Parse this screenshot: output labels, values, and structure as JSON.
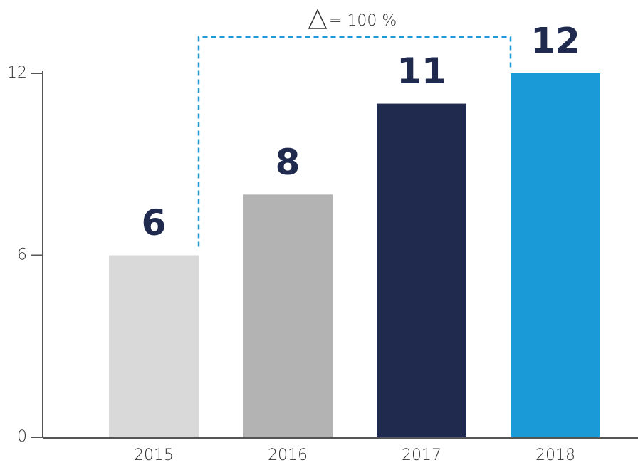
{
  "chart_data": {
    "type": "bar",
    "annotation": "= 100 %",
    "categories": [
      "2015",
      "2016",
      "2017",
      "2018"
    ],
    "values": [
      6,
      8,
      11,
      12
    ],
    "colors": [
      "#d9d9d9",
      "#b3b3b3",
      "#1f2a4e",
      "#1a9bd7"
    ],
    "ylim": [
      0,
      12
    ],
    "yticks": [
      0,
      6,
      12
    ],
    "grid": false
  }
}
